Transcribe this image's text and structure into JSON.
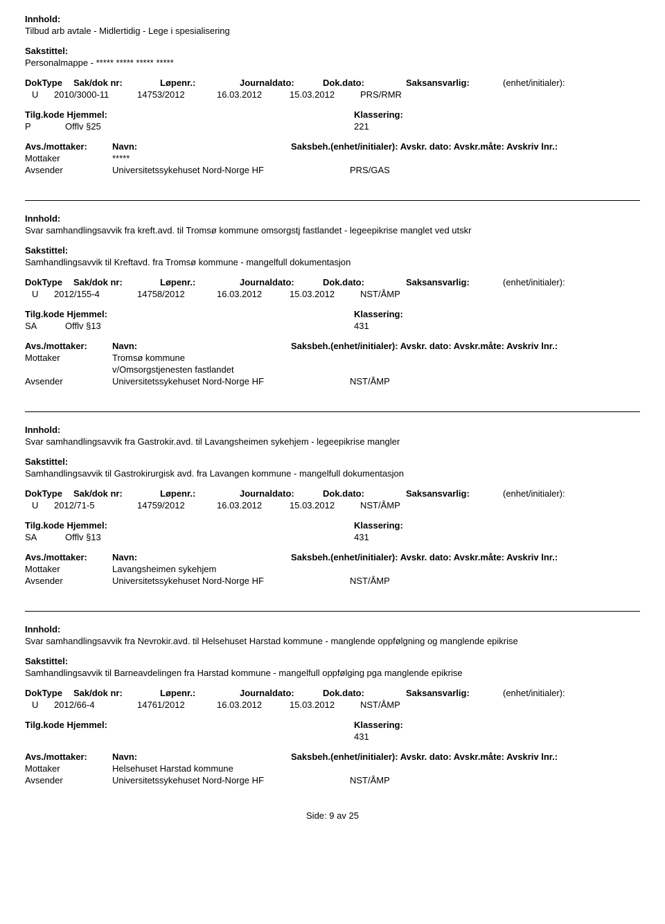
{
  "labels": {
    "innhold": "Innhold:",
    "sakstittel": "Sakstittel:",
    "doktype": "DokType",
    "sakdoknr": "Sak/dok nr:",
    "lopenr": "Løpenr.:",
    "journaldato": "Journaldato:",
    "dokdato": "Dok.dato:",
    "saksansvarlig": "Saksansvarlig:",
    "enhet": "(enhet/initialer):",
    "tilgkode": "Tilg.kode",
    "hjemmel": "Hjemmel:",
    "klassering": "Klassering:",
    "avsmottaker": "Avs./mottaker:",
    "navn": "Navn:",
    "saksbeh_line": "Saksbeh.(enhet/initialer): Avskr. dato:  Avskr.måte:  Avskriv lnr.:",
    "mottaker": "Mottaker",
    "avsender": "Avsender"
  },
  "footer": {
    "side": "Side:",
    "page_no": "9",
    "av": "av",
    "total": "25"
  },
  "records": [
    {
      "innhold": "Tilbud arb avtale - Midlertidig - Lege i spesialisering",
      "sakstittel": "Personalmappe - ***** ***** ***** *****",
      "doktype": "U",
      "sakdoknr": "2010/3000-11",
      "lopenr": "14753/2012",
      "jdato": "16.03.2012",
      "dokdato": "15.03.2012",
      "saksansv": "PRS/RMR",
      "tilgcode": "P",
      "hjemmel": "Offlv §25",
      "klassering": "221",
      "mottaker": "*****",
      "mottaker2": "",
      "avsender": "Universitetssykehuset Nord-Norge HF",
      "avs_unit": "PRS/GAS"
    },
    {
      "innhold": "Svar samhandlingsavvik fra kreft.avd. til Tromsø kommune omsorgstj fastlandet - legeepikrise manglet ved utskr",
      "sakstittel": "Samhandlingsavvik til Kreftavd. fra Tromsø kommune - mangelfull dokumentasjon",
      "doktype": "U",
      "sakdoknr": "2012/155-4",
      "lopenr": "14758/2012",
      "jdato": "16.03.2012",
      "dokdato": "15.03.2012",
      "saksansv": "NST/ÅMP",
      "tilgcode": "SA",
      "hjemmel": "Offlv §13",
      "klassering": "431",
      "mottaker": "Tromsø kommune",
      "mottaker2": "v/Omsorgstjenesten fastlandet",
      "avsender": "Universitetssykehuset Nord-Norge HF",
      "avs_unit": "NST/ÅMP"
    },
    {
      "innhold": "Svar samhandlingsavvik fra Gastrokir.avd. til Lavangsheimen sykehjem - legeepikrise mangler",
      "sakstittel": "Samhandlingsavvik til Gastrokirurgisk avd. fra Lavangen kommune - mangelfull dokumentasjon",
      "doktype": "U",
      "sakdoknr": "2012/71-5",
      "lopenr": "14759/2012",
      "jdato": "16.03.2012",
      "dokdato": "15.03.2012",
      "saksansv": "NST/ÅMP",
      "tilgcode": "SA",
      "hjemmel": "Offlv §13",
      "klassering": "431",
      "mottaker": "Lavangsheimen sykehjem",
      "mottaker2": "",
      "avsender": "Universitetssykehuset Nord-Norge HF",
      "avs_unit": "NST/ÅMP"
    },
    {
      "innhold": "Svar samhandlingsavvik fra Nevrokir.avd. til Helsehuset Harstad kommune - manglende oppfølgning og manglende epikrise",
      "sakstittel": "Samhandlingsavvik til Barneavdelingen fra Harstad kommune - mangelfull oppfølging pga manglende epikrise",
      "doktype": "U",
      "sakdoknr": "2012/66-4",
      "lopenr": "14761/2012",
      "jdato": "16.03.2012",
      "dokdato": "15.03.2012",
      "saksansv": "NST/ÅMP",
      "tilgcode": "",
      "hjemmel": "",
      "klassering": "431",
      "mottaker": "Helsehuset Harstad kommune",
      "mottaker2": "",
      "avsender": "Universitetssykehuset Nord-Norge HF",
      "avs_unit": "NST/ÅMP"
    }
  ]
}
